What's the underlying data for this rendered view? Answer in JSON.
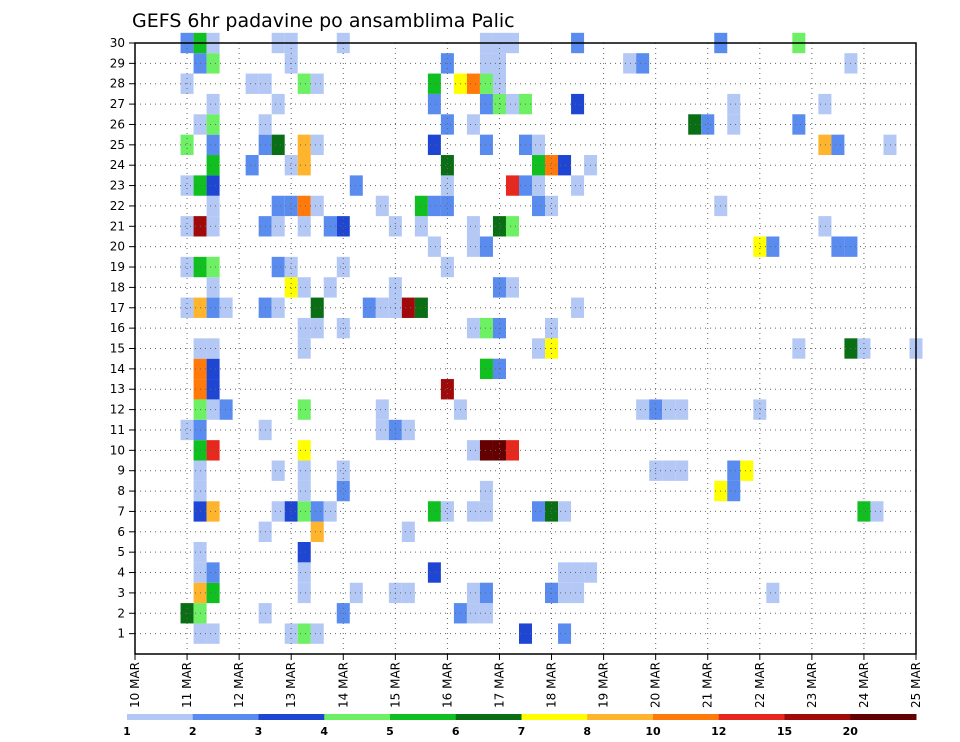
{
  "chart_data": {
    "type": "heatmap",
    "title": "GEFS 6hr padavine po ansamblima Palic",
    "xlabel": "",
    "ylabel": "",
    "x_ticks": [
      "10 MAR",
      "11 MAR",
      "12 MAR",
      "13 MAR",
      "14 MAR",
      "15 MAR",
      "16 MAR",
      "17 MAR",
      "18 MAR",
      "19 MAR",
      "20 MAR",
      "21 MAR",
      "22 MAR",
      "23 MAR",
      "24 MAR",
      "25 MAR"
    ],
    "y_ticks": [
      "1",
      "2",
      "3",
      "4",
      "5",
      "6",
      "7",
      "8",
      "9",
      "10",
      "11",
      "12",
      "13",
      "14",
      "15",
      "16",
      "17",
      "18",
      "19",
      "20",
      "21",
      "22",
      "23",
      "24",
      "25",
      "26",
      "27",
      "28",
      "29",
      "30"
    ],
    "time_steps_per_day": 4,
    "xlim_days": [
      10,
      25
    ],
    "ylim_members": [
      0,
      30
    ],
    "grid": true,
    "legend": {
      "placement": "bottom",
      "colors": [
        "#b4c8f5",
        "#5a8cf0",
        "#1e46d2",
        "#6ef064",
        "#10c020",
        "#0a6e14",
        "#ffff00",
        "#ffb42d",
        "#ff7a0a",
        "#e6281e",
        "#a00a0a",
        "#640000"
      ],
      "labels": [
        "1",
        "2",
        "3",
        "4",
        "5",
        "6",
        "7",
        "8",
        "10",
        "12",
        "15",
        "20"
      ]
    },
    "cells": [
      [
        11.25,
        1,
        1
      ],
      [
        11.5,
        1,
        1
      ],
      [
        13,
        1,
        1
      ],
      [
        13.25,
        1,
        4
      ],
      [
        13.5,
        1,
        1
      ],
      [
        17.5,
        1,
        3
      ],
      [
        18.25,
        1,
        2
      ],
      [
        11,
        2,
        6
      ],
      [
        11.25,
        2,
        4
      ],
      [
        12.5,
        2,
        1
      ],
      [
        14,
        2,
        2
      ],
      [
        16.25,
        2,
        2
      ],
      [
        16.5,
        2,
        1
      ],
      [
        16.75,
        2,
        1
      ],
      [
        11.25,
        3,
        8
      ],
      [
        11.5,
        3,
        5
      ],
      [
        13.25,
        3,
        1
      ],
      [
        14.25,
        3,
        1
      ],
      [
        15,
        3,
        1
      ],
      [
        15.25,
        3,
        1
      ],
      [
        16.5,
        3,
        1
      ],
      [
        16.75,
        3,
        2
      ],
      [
        18,
        3,
        2
      ],
      [
        18.25,
        3,
        1
      ],
      [
        18.5,
        3,
        1
      ],
      [
        22.25,
        3,
        1
      ],
      [
        11.25,
        4,
        1
      ],
      [
        11.5,
        4,
        2
      ],
      [
        13.25,
        4,
        1
      ],
      [
        15.75,
        4,
        3
      ],
      [
        18.25,
        4,
        1
      ],
      [
        18.5,
        4,
        1
      ],
      [
        18.75,
        4,
        1
      ],
      [
        11.25,
        5,
        1
      ],
      [
        13.25,
        5,
        3
      ],
      [
        12.5,
        6,
        1
      ],
      [
        13.5,
        6,
        8
      ],
      [
        15.25,
        6,
        1
      ],
      [
        11.25,
        7,
        3
      ],
      [
        11.5,
        7,
        8
      ],
      [
        12.75,
        7,
        1
      ],
      [
        13,
        7,
        3
      ],
      [
        13.25,
        7,
        4
      ],
      [
        13.5,
        7,
        2
      ],
      [
        13.75,
        7,
        1
      ],
      [
        15.75,
        7,
        5
      ],
      [
        16,
        7,
        1
      ],
      [
        16.5,
        7,
        1
      ],
      [
        16.75,
        7,
        1
      ],
      [
        17.75,
        7,
        2
      ],
      [
        18,
        7,
        6
      ],
      [
        18.25,
        7,
        1
      ],
      [
        24,
        7,
        5
      ],
      [
        24.25,
        7,
        1
      ],
      [
        11.25,
        8,
        1
      ],
      [
        13.25,
        8,
        1
      ],
      [
        14,
        8,
        2
      ],
      [
        16.75,
        8,
        1
      ],
      [
        21.25,
        8,
        7
      ],
      [
        21.5,
        8,
        2
      ],
      [
        11.25,
        9,
        1
      ],
      [
        12.75,
        9,
        1
      ],
      [
        13.25,
        9,
        1
      ],
      [
        14,
        9,
        1
      ],
      [
        20,
        9,
        1
      ],
      [
        20.25,
        9,
        1
      ],
      [
        20.5,
        9,
        1
      ],
      [
        21.5,
        9,
        2
      ],
      [
        21.75,
        9,
        7
      ],
      [
        11.25,
        10,
        5
      ],
      [
        11.5,
        10,
        12
      ],
      [
        13.25,
        10,
        7
      ],
      [
        16.5,
        10,
        1
      ],
      [
        16.75,
        10,
        20
      ],
      [
        17,
        10,
        20
      ],
      [
        17.25,
        10,
        12
      ],
      [
        11,
        11,
        1
      ],
      [
        11.25,
        11,
        2
      ],
      [
        12.5,
        11,
        1
      ],
      [
        14.75,
        11,
        1
      ],
      [
        15,
        11,
        2
      ],
      [
        15.25,
        11,
        1
      ],
      [
        11.25,
        12,
        4
      ],
      [
        11.5,
        12,
        1
      ],
      [
        11.75,
        12,
        2
      ],
      [
        13.25,
        12,
        4
      ],
      [
        14.75,
        12,
        1
      ],
      [
        16.25,
        12,
        1
      ],
      [
        19.75,
        12,
        1
      ],
      [
        20,
        12,
        2
      ],
      [
        20.25,
        12,
        1
      ],
      [
        20.5,
        12,
        1
      ],
      [
        22,
        12,
        1
      ],
      [
        11.25,
        13,
        10
      ],
      [
        11.5,
        13,
        3
      ],
      [
        16,
        13,
        15
      ],
      [
        11.25,
        14,
        10
      ],
      [
        11.5,
        14,
        3
      ],
      [
        16.75,
        14,
        5
      ],
      [
        17,
        14,
        2
      ],
      [
        11.25,
        15,
        1
      ],
      [
        11.5,
        15,
        1
      ],
      [
        13.25,
        15,
        1
      ],
      [
        17.75,
        15,
        1
      ],
      [
        18,
        15,
        7
      ],
      [
        22.75,
        15,
        1
      ],
      [
        23.75,
        15,
        6
      ],
      [
        24,
        15,
        1
      ],
      [
        25,
        15,
        1
      ],
      [
        13.25,
        16,
        1
      ],
      [
        13.5,
        16,
        1
      ],
      [
        14,
        16,
        1
      ],
      [
        16.5,
        16,
        1
      ],
      [
        16.75,
        16,
        4
      ],
      [
        17,
        16,
        2
      ],
      [
        18,
        16,
        1
      ],
      [
        11,
        17,
        1
      ],
      [
        11.25,
        17,
        8
      ],
      [
        11.5,
        17,
        2
      ],
      [
        11.75,
        17,
        1
      ],
      [
        12.5,
        17,
        2
      ],
      [
        12.75,
        17,
        1
      ],
      [
        13.5,
        17,
        6
      ],
      [
        14.5,
        17,
        2
      ],
      [
        14.75,
        17,
        1
      ],
      [
        15,
        17,
        1
      ],
      [
        15.25,
        17,
        15
      ],
      [
        15.5,
        17,
        6
      ],
      [
        18.5,
        17,
        1
      ],
      [
        11.5,
        18,
        1
      ],
      [
        13,
        18,
        7
      ],
      [
        13.25,
        18,
        1
      ],
      [
        13.75,
        18,
        1
      ],
      [
        15,
        18,
        1
      ],
      [
        17,
        18,
        2
      ],
      [
        17.25,
        18,
        1
      ],
      [
        11,
        19,
        1
      ],
      [
        11.25,
        19,
        5
      ],
      [
        11.5,
        19,
        4
      ],
      [
        12.75,
        19,
        2
      ],
      [
        13,
        19,
        1
      ],
      [
        14,
        19,
        1
      ],
      [
        16,
        19,
        1
      ],
      [
        15.75,
        20,
        1
      ],
      [
        16.5,
        20,
        1
      ],
      [
        16.75,
        20,
        2
      ],
      [
        22,
        20,
        7
      ],
      [
        22.25,
        20,
        2
      ],
      [
        23.5,
        20,
        2
      ],
      [
        23.75,
        20,
        2
      ],
      [
        11,
        21,
        1
      ],
      [
        11.25,
        21,
        15
      ],
      [
        11.5,
        21,
        1
      ],
      [
        12.5,
        21,
        2
      ],
      [
        12.75,
        21,
        1
      ],
      [
        13.25,
        21,
        1
      ],
      [
        13.75,
        21,
        2
      ],
      [
        14,
        21,
        3
      ],
      [
        15,
        21,
        1
      ],
      [
        15.5,
        21,
        1
      ],
      [
        16.5,
        21,
        1
      ],
      [
        17,
        21,
        6
      ],
      [
        17.25,
        21,
        4
      ],
      [
        23.25,
        21,
        1
      ],
      [
        11.5,
        22,
        1
      ],
      [
        12.75,
        22,
        2
      ],
      [
        13,
        22,
        2
      ],
      [
        13.25,
        22,
        10
      ],
      [
        13.5,
        22,
        1
      ],
      [
        14.75,
        22,
        1
      ],
      [
        15.5,
        22,
        5
      ],
      [
        15.75,
        22,
        2
      ],
      [
        16,
        22,
        2
      ],
      [
        17.75,
        22,
        2
      ],
      [
        18,
        22,
        1
      ],
      [
        21.25,
        22,
        1
      ],
      [
        11,
        23,
        1
      ],
      [
        11.25,
        23,
        5
      ],
      [
        11.5,
        23,
        3
      ],
      [
        14.25,
        23,
        2
      ],
      [
        16,
        23,
        1
      ],
      [
        17.25,
        23,
        12
      ],
      [
        17.5,
        23,
        2
      ],
      [
        17.75,
        23,
        1
      ],
      [
        18.5,
        23,
        1
      ],
      [
        11.5,
        24,
        5
      ],
      [
        12.25,
        24,
        2
      ],
      [
        13,
        24,
        1
      ],
      [
        13.25,
        24,
        8
      ],
      [
        16,
        24,
        6
      ],
      [
        17.75,
        24,
        5
      ],
      [
        18,
        24,
        10
      ],
      [
        18.25,
        24,
        3
      ],
      [
        18.75,
        24,
        1
      ],
      [
        11,
        25,
        4
      ],
      [
        11.5,
        25,
        2
      ],
      [
        12.5,
        25,
        2
      ],
      [
        12.75,
        25,
        6
      ],
      [
        13.25,
        25,
        8
      ],
      [
        13.5,
        25,
        1
      ],
      [
        15.75,
        25,
        3
      ],
      [
        16.75,
        25,
        2
      ],
      [
        17.5,
        25,
        2
      ],
      [
        17.75,
        25,
        1
      ],
      [
        23.25,
        25,
        8
      ],
      [
        23.5,
        25,
        2
      ],
      [
        24.5,
        25,
        1
      ],
      [
        11.25,
        26,
        1
      ],
      [
        11.5,
        26,
        4
      ],
      [
        12.5,
        26,
        1
      ],
      [
        16,
        26,
        2
      ],
      [
        16.5,
        26,
        1
      ],
      [
        20.75,
        26,
        6
      ],
      [
        21,
        26,
        2
      ],
      [
        21.5,
        26,
        1
      ],
      [
        22.75,
        26,
        2
      ],
      [
        11.5,
        27,
        1
      ],
      [
        12.75,
        27,
        1
      ],
      [
        15.75,
        27,
        2
      ],
      [
        16.75,
        27,
        2
      ],
      [
        17,
        27,
        4
      ],
      [
        17.25,
        27,
        1
      ],
      [
        17.5,
        27,
        4
      ],
      [
        18.5,
        27,
        3
      ],
      [
        21.5,
        27,
        1
      ],
      [
        23.25,
        27,
        1
      ],
      [
        11,
        28,
        1
      ],
      [
        12.25,
        28,
        1
      ],
      [
        12.5,
        28,
        1
      ],
      [
        13.25,
        28,
        4
      ],
      [
        13.5,
        28,
        1
      ],
      [
        15.75,
        28,
        5
      ],
      [
        16.25,
        28,
        7
      ],
      [
        16.5,
        28,
        10
      ],
      [
        16.75,
        28,
        4
      ],
      [
        17,
        28,
        1
      ],
      [
        11.25,
        29,
        2
      ],
      [
        11.5,
        29,
        4
      ],
      [
        13,
        29,
        1
      ],
      [
        16,
        29,
        2
      ],
      [
        16.75,
        29,
        1
      ],
      [
        17,
        29,
        1
      ],
      [
        19.5,
        29,
        1
      ],
      [
        19.75,
        29,
        2
      ],
      [
        23.75,
        29,
        1
      ],
      [
        11,
        30,
        2
      ],
      [
        11.25,
        30,
        5
      ],
      [
        11.5,
        30,
        1
      ],
      [
        12.75,
        30,
        1
      ],
      [
        13,
        30,
        1
      ],
      [
        14,
        30,
        1
      ],
      [
        16.75,
        30,
        1
      ],
      [
        17,
        30,
        1
      ],
      [
        17.25,
        30,
        1
      ],
      [
        18.5,
        30,
        2
      ],
      [
        21.25,
        30,
        2
      ],
      [
        22.75,
        30,
        4
      ]
    ]
  }
}
